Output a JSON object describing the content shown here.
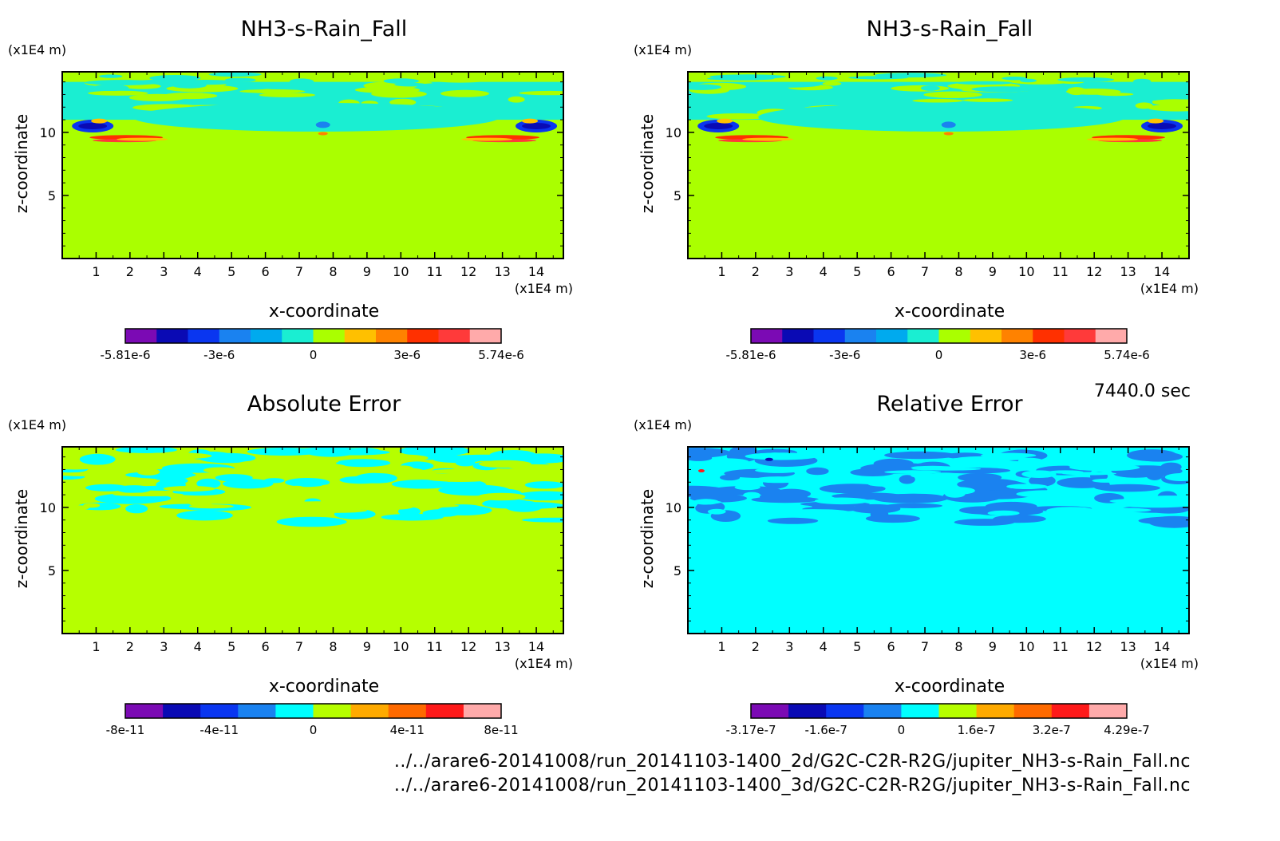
{
  "time_label": "7440.0 sec",
  "footer": {
    "file_2d": "../../arare6-20141008/run_20141103-1400_2d/G2C-C2R-R2G/jupiter_NH3-s-Rain_Fall.nc",
    "file_3d": "../../arare6-20141008/run_20141103-1400_3d/G2C-C2R-R2G/jupiter_NH3-s-Rain_Fall.nc"
  },
  "colors": {
    "palette": [
      "#7b0ab4",
      "#0a0ab4",
      "#0a36f0",
      "#1a82f0",
      "#00aaee",
      "#1aeed2",
      "#aaff00",
      "#ffc000",
      "#ff8200",
      "#ff3000",
      "#ff3a3a",
      "#ffaaaa"
    ],
    "abs_palette": [
      "#7b0ab4",
      "#0a0ab4",
      "#0a36f0",
      "#1a82f0",
      "#00ffff",
      "#b6ff00",
      "#ffaa00",
      "#ff6a00",
      "#ff1a1a",
      "#ffaaaa"
    ],
    "rel_palette": [
      "#7b0ab4",
      "#0a0ab4",
      "#0a36f0",
      "#1a82f0",
      "#00ffff",
      "#b6ff00",
      "#ffaa00",
      "#ff6a00",
      "#ff1a1a",
      "#ffaaaa"
    ]
  },
  "chart_data": [
    {
      "type": "heatmap",
      "title": "NH3-s-Rain_Fall",
      "xlabel": "x-coordinate",
      "ylabel": "z-coordinate",
      "x_unit": "(x1E4 m)",
      "y_unit": "(x1E4 m)",
      "xlim": [
        0,
        14.8
      ],
      "ylim": [
        0,
        14.8
      ],
      "x_ticks": [
        "1",
        "2",
        "3",
        "4",
        "5",
        "6",
        "7",
        "8",
        "9",
        "10",
        "11",
        "12",
        "13",
        "14"
      ],
      "y_ticks": [
        "5",
        "10"
      ],
      "background_level": "0",
      "colorbar_labels": [
        "-5.81e-6",
        "-3e-6",
        "0",
        "3e-6",
        "5.74e-6"
      ]
    },
    {
      "type": "heatmap",
      "title": "NH3-s-Rain_Fall",
      "xlabel": "x-coordinate",
      "ylabel": "z-coordinate",
      "x_unit": "(x1E4 m)",
      "y_unit": "(x1E4 m)",
      "xlim": [
        0,
        14.8
      ],
      "ylim": [
        0,
        14.8
      ],
      "x_ticks": [
        "1",
        "2",
        "3",
        "4",
        "5",
        "6",
        "7",
        "8",
        "9",
        "10",
        "11",
        "12",
        "13",
        "14"
      ],
      "y_ticks": [
        "5",
        "10"
      ],
      "background_level": "0",
      "colorbar_labels": [
        "-5.81e-6",
        "-3e-6",
        "0",
        "3e-6",
        "5.74e-6"
      ]
    },
    {
      "type": "heatmap",
      "title": "Absolute Error",
      "xlabel": "x-coordinate",
      "ylabel": "z-coordinate",
      "x_unit": "(x1E4 m)",
      "y_unit": "(x1E4 m)",
      "xlim": [
        0,
        14.8
      ],
      "ylim": [
        0,
        14.8
      ],
      "x_ticks": [
        "1",
        "2",
        "3",
        "4",
        "5",
        "6",
        "7",
        "8",
        "9",
        "10",
        "11",
        "12",
        "13",
        "14"
      ],
      "y_ticks": [
        "5",
        "10"
      ],
      "background_level": "0",
      "colorbar_labels": [
        "-8e-11",
        "-4e-11",
        "0",
        "4e-11",
        "8e-11"
      ]
    },
    {
      "type": "heatmap",
      "title": "Relative Error",
      "xlabel": "x-coordinate",
      "ylabel": "z-coordinate",
      "x_unit": "(x1E4 m)",
      "y_unit": "(x1E4 m)",
      "xlim": [
        0,
        14.8
      ],
      "ylim": [
        0,
        14.8
      ],
      "x_ticks": [
        "1",
        "2",
        "3",
        "4",
        "5",
        "6",
        "7",
        "8",
        "9",
        "10",
        "11",
        "12",
        "13",
        "14"
      ],
      "y_ticks": [
        "5",
        "10"
      ],
      "background_level": "0",
      "colorbar_labels": [
        "-3.17e-7",
        "-1.6e-7",
        "0",
        "1.6e-7",
        "3.2e-7",
        "4.29e-7"
      ]
    }
  ]
}
